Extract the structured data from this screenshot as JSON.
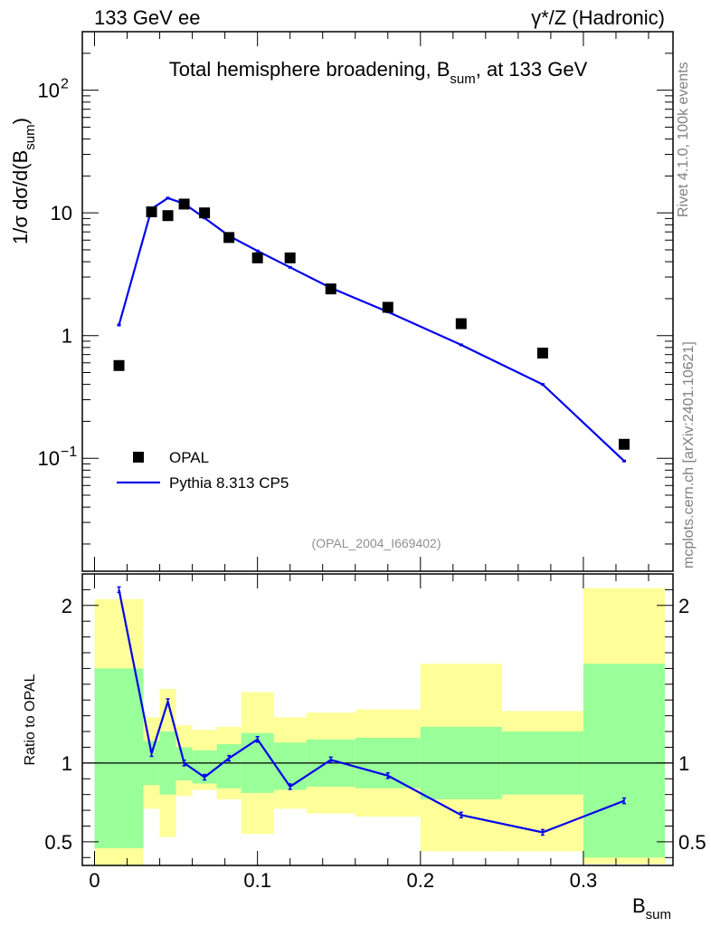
{
  "header": {
    "left_title": "133 GeV ee",
    "right_title": "γ*/Z (Hadronic)"
  },
  "side_text": {
    "rivet": "Rivet 4.1.0,  100k events",
    "mcplots": "mcplots.cern.ch [arXiv:2401.10621]"
  },
  "colors": {
    "data": "#000000",
    "mc": "#0000ee",
    "band_inner": "#99ff99",
    "band_outer": "#ffff99"
  },
  "chart_data": {
    "type": "line",
    "title_main": "Total hemisphere broadening, B",
    "title_sub": "sum",
    "title_tail": ", at 133 GeV",
    "analysis_id": "(OPAL_2004_I669402)",
    "xlabel_main": "B",
    "xlabel_sub": "sum",
    "ylabel_main": "1/σ  dσ/d(B",
    "ylabel_sub": "sum",
    "ylabel_tail": ")",
    "ratio_ylabel": "Ratio to OPAL",
    "xlim": [
      -0.0075,
      0.355
    ],
    "ylim_main": [
      0.012,
      300
    ],
    "ylim_ratio": [
      0.35,
      2.2
    ],
    "yscale_main": "log",
    "x_ticks": [
      0,
      0.1,
      0.2,
      0.3
    ],
    "x_tick_labels": [
      "0",
      "0.1",
      "0.2",
      "0.3"
    ],
    "main_y_ticks": [
      0.1,
      1,
      10,
      100
    ],
    "main_y_tick_labels": [
      {
        "base": "10",
        "exp": "−1"
      },
      {
        "base": "1",
        "exp": ""
      },
      {
        "base": "10",
        "exp": ""
      },
      {
        "base": "10",
        "exp": "2"
      }
    ],
    "ratio_y_ticks": [
      0.5,
      1,
      2
    ],
    "ratio_y_tick_labels": [
      "0.5",
      "1",
      "2"
    ],
    "bin_edges": [
      0,
      0.03,
      0.04,
      0.05,
      0.06,
      0.075,
      0.09,
      0.11,
      0.13,
      0.16,
      0.2,
      0.25,
      0.3,
      0.35
    ],
    "x": [
      0.015,
      0.035,
      0.045,
      0.055,
      0.0675,
      0.0825,
      0.1,
      0.12,
      0.145,
      0.18,
      0.225,
      0.275,
      0.325
    ],
    "series": [
      {
        "name": "OPAL",
        "style": "markers",
        "values": [
          0.57,
          10.2,
          9.5,
          11.8,
          10.0,
          6.3,
          4.3,
          4.3,
          2.4,
          1.7,
          1.25,
          0.72,
          0.13
        ]
      },
      {
        "name": "Pythia 8.313 CP5",
        "style": "line",
        "values": [
          1.22,
          10.8,
          13.2,
          11.9,
          9.1,
          6.5,
          4.9,
          3.6,
          2.45,
          1.56,
          0.84,
          0.4,
          0.095
        ]
      }
    ],
    "ratio": {
      "mc_over_data": [
        2.1,
        1.06,
        1.39,
        1.0,
        0.91,
        1.03,
        1.15,
        0.85,
        1.02,
        0.92,
        0.67,
        0.56,
        0.76
      ],
      "band_inner_lo": [
        0.46,
        0.86,
        0.8,
        0.89,
        0.87,
        0.84,
        0.81,
        0.83,
        0.85,
        0.84,
        0.77,
        0.8,
        0.4
      ],
      "band_inner_hi": [
        1.6,
        1.14,
        1.2,
        1.1,
        1.08,
        1.12,
        1.19,
        1.13,
        1.15,
        1.16,
        1.23,
        1.2,
        1.63
      ],
      "band_outer_lo": [
        0.29,
        0.71,
        0.53,
        0.79,
        0.83,
        0.77,
        0.55,
        0.71,
        0.68,
        0.66,
        0.44,
        0.44,
        0.36
      ],
      "band_outer_hi": [
        2.04,
        1.29,
        1.47,
        1.24,
        1.21,
        1.23,
        1.45,
        1.29,
        1.32,
        1.34,
        1.63,
        1.33,
        2.11
      ]
    }
  }
}
